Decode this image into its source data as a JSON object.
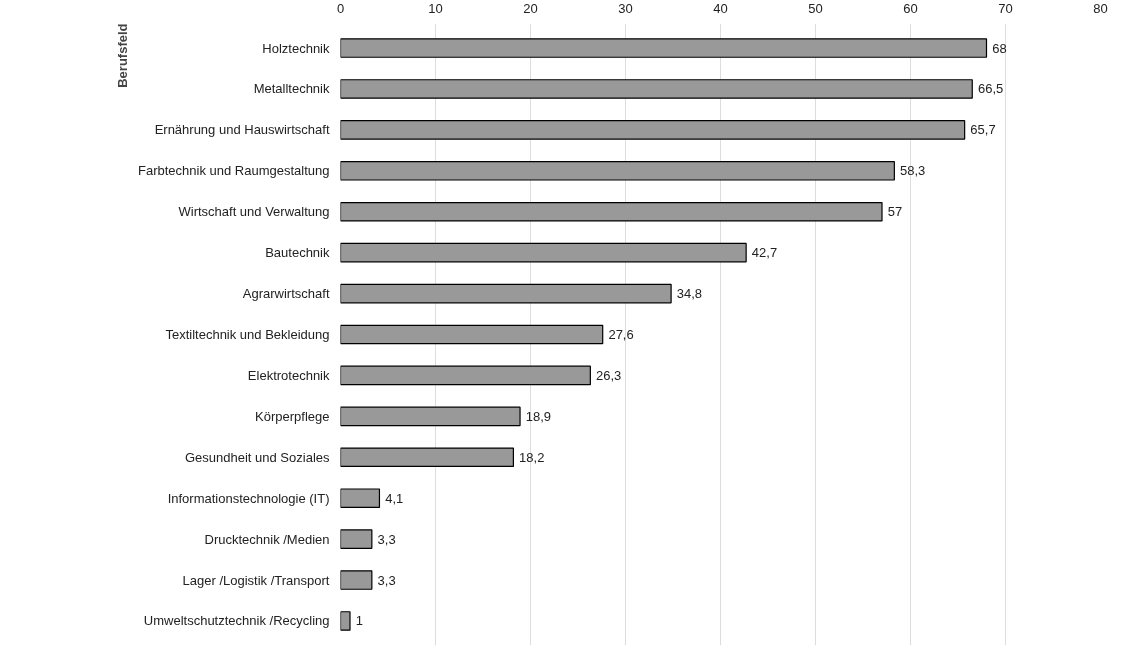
{
  "chart_data": {
    "type": "bar",
    "orientation": "horizontal",
    "ylabel": "Berufsfeld",
    "categories": [
      "Holztechnik",
      "Metalltechnik",
      "Ernährung und Hauswirtschaft",
      "Farbtechnik und Raumgestaltung",
      "Wirtschaft und Verwaltung",
      "Bautechnik",
      "Agrarwirtschaft",
      "Textiltechnik und Bekleidung",
      "Elektrotechnik",
      "Körperpflege",
      "Gesundheit und Soziales",
      "Informationstechnologie (IT)",
      "Drucktechnik /Medien",
      "Lager /Logistik /Transport",
      "Umweltschutztechnik /Recycling"
    ],
    "values": [
      68,
      66.5,
      65.7,
      58.3,
      57,
      42.7,
      34.8,
      27.6,
      26.3,
      18.9,
      18.2,
      4.1,
      3.3,
      3.3,
      1
    ],
    "value_labels": [
      "68",
      "66,5",
      "65,7",
      "58,3",
      "57",
      "42,7",
      "34,8",
      "27,6",
      "26,3",
      "18,9",
      "18,2",
      "4,1",
      "3,3",
      "3,3",
      "1"
    ],
    "color": "#999999",
    "xlim": [
      0,
      80
    ],
    "xticks": [
      0,
      10,
      20,
      30,
      40,
      50,
      60,
      70,
      80
    ],
    "grid": "x"
  }
}
